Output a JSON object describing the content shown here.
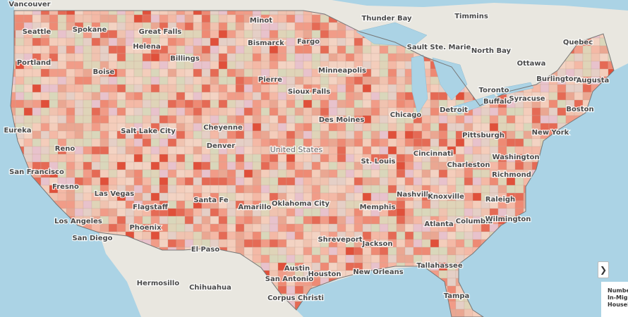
{
  "map": {
    "country_label": "United States",
    "places": [
      "Vancouver",
      "Seattle",
      "Spokane",
      "Great Falls",
      "Helena",
      "Billings",
      "Minot",
      "Bismarck",
      "Fargo",
      "Thunder Bay",
      "Timmins",
      "Sault Ste. Marie",
      "North Bay",
      "Quebec",
      "Ottawa",
      "Portland",
      "Boise",
      "Pierre",
      "Minneapolis",
      "Burlington",
      "Augusta",
      "Sioux Falls",
      "Toronto",
      "Buffalo",
      "Syracuse",
      "Boston",
      "Eureka",
      "Salt Lake City",
      "Cheyenne",
      "Des Moines",
      "Chicago",
      "Detroit",
      "Reno",
      "Denver",
      "Pittsburgh",
      "New York",
      "Cincinnati",
      "Washington",
      "San Francisco",
      "St. Louis",
      "Charleston",
      "Richmond",
      "Fresno",
      "Las Vegas",
      "Flagstaff",
      "Santa Fe",
      "Amarillo",
      "Oklahoma City",
      "Nashville",
      "Knoxville",
      "Raleigh",
      "Los Angeles",
      "Memphis",
      "Phoenix",
      "Columbia",
      "Wilmington",
      "San Diego",
      "Shreveport",
      "Atlanta",
      "El Paso",
      "Jackson",
      "New Orleans",
      "Tallahassee",
      "Austin",
      "Houston",
      "San Antonio",
      "Hermosillo",
      "Chihuahua",
      "Corpus Christi",
      "Tampa"
    ]
  },
  "legend": {
    "title_lines": [
      "Number",
      "In-Migra",
      "Househo"
    ]
  }
}
